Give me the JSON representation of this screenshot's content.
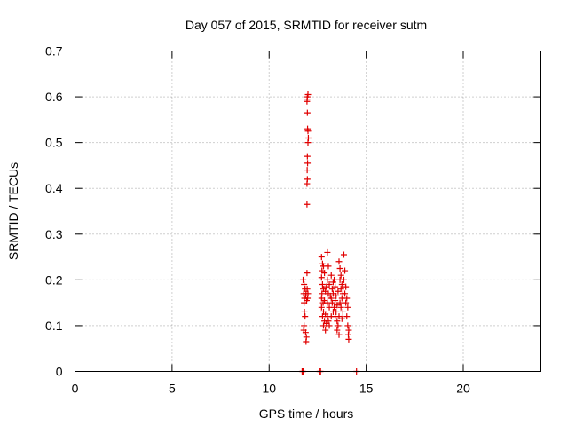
{
  "chart_data": {
    "type": "scatter",
    "title": "Day 057 of 2015, SRMTID for receiver sutm",
    "xlabel": "GPS time / hours",
    "ylabel": "SRMTID / TECUs",
    "xlim": [
      0,
      24
    ],
    "ylim": [
      0,
      0.7
    ],
    "xticks": [
      0,
      5,
      10,
      15,
      20
    ],
    "yticks": [
      0,
      0.1,
      0.2,
      0.3,
      0.4,
      0.5,
      0.6,
      0.7
    ],
    "xtick_labels": [
      "0",
      "5",
      "10",
      "15",
      "20"
    ],
    "ytick_labels": [
      "0",
      "0.1",
      "0.2",
      "0.3",
      "0.4",
      "0.5",
      "0.6",
      "0.7"
    ],
    "grid": true,
    "marker": "+",
    "color": "#e00000",
    "series": [
      {
        "name": "SRMTID",
        "points": [
          [
            11.7,
            0.0
          ],
          [
            11.75,
            0.0
          ],
          [
            12.6,
            0.0
          ],
          [
            12.65,
            0.0
          ],
          [
            14.5,
            0.0
          ],
          [
            11.75,
            0.2
          ],
          [
            11.8,
            0.19
          ],
          [
            11.78,
            0.17
          ],
          [
            11.82,
            0.16
          ],
          [
            11.8,
            0.15
          ],
          [
            11.85,
            0.18
          ],
          [
            11.9,
            0.17
          ],
          [
            11.88,
            0.165
          ],
          [
            11.82,
            0.13
          ],
          [
            11.85,
            0.12
          ],
          [
            11.8,
            0.1
          ],
          [
            11.78,
            0.09
          ],
          [
            11.88,
            0.085
          ],
          [
            11.92,
            0.075
          ],
          [
            11.9,
            0.065
          ],
          [
            11.95,
            0.215
          ],
          [
            11.96,
            0.18
          ],
          [
            12.0,
            0.17
          ],
          [
            11.93,
            0.155
          ],
          [
            11.98,
            0.16
          ],
          [
            11.95,
            0.365
          ],
          [
            11.95,
            0.41
          ],
          [
            11.97,
            0.42
          ],
          [
            11.96,
            0.44
          ],
          [
            11.98,
            0.455
          ],
          [
            11.97,
            0.47
          ],
          [
            12.0,
            0.5
          ],
          [
            12.02,
            0.51
          ],
          [
            12.0,
            0.525
          ],
          [
            11.98,
            0.53
          ],
          [
            11.97,
            0.565
          ],
          [
            11.95,
            0.59
          ],
          [
            11.96,
            0.595
          ],
          [
            11.97,
            0.6
          ],
          [
            12.0,
            0.605
          ],
          [
            12.7,
            0.25
          ],
          [
            12.75,
            0.235
          ],
          [
            12.72,
            0.22
          ],
          [
            12.8,
            0.23
          ],
          [
            12.85,
            0.215
          ],
          [
            12.7,
            0.205
          ],
          [
            12.75,
            0.19
          ],
          [
            12.8,
            0.18
          ],
          [
            12.72,
            0.17
          ],
          [
            12.9,
            0.175
          ],
          [
            12.7,
            0.16
          ],
          [
            12.78,
            0.15
          ],
          [
            12.85,
            0.155
          ],
          [
            12.7,
            0.14
          ],
          [
            12.8,
            0.13
          ],
          [
            12.9,
            0.125
          ],
          [
            12.75,
            0.12
          ],
          [
            12.85,
            0.11
          ],
          [
            12.95,
            0.105
          ],
          [
            12.8,
            0.1
          ],
          [
            12.9,
            0.09
          ],
          [
            13.0,
            0.26
          ],
          [
            13.05,
            0.23
          ],
          [
            13.0,
            0.2
          ],
          [
            13.1,
            0.19
          ],
          [
            13.05,
            0.17
          ],
          [
            13.0,
            0.15
          ],
          [
            13.1,
            0.14
          ],
          [
            13.0,
            0.12
          ],
          [
            13.05,
            0.11
          ],
          [
            13.1,
            0.1
          ],
          [
            13.2,
            0.21
          ],
          [
            13.25,
            0.18
          ],
          [
            13.3,
            0.17
          ],
          [
            13.2,
            0.16
          ],
          [
            13.25,
            0.15
          ],
          [
            13.35,
            0.14
          ],
          [
            13.3,
            0.13
          ],
          [
            13.2,
            0.12
          ],
          [
            13.35,
            0.2
          ],
          [
            13.3,
            0.195
          ],
          [
            13.4,
            0.185
          ],
          [
            13.45,
            0.165
          ],
          [
            13.4,
            0.155
          ],
          [
            13.5,
            0.145
          ],
          [
            13.45,
            0.13
          ],
          [
            13.4,
            0.12
          ],
          [
            13.5,
            0.11
          ],
          [
            13.55,
            0.1
          ],
          [
            13.5,
            0.09
          ],
          [
            13.6,
            0.08
          ],
          [
            13.6,
            0.24
          ],
          [
            13.65,
            0.225
          ],
          [
            13.7,
            0.21
          ],
          [
            13.65,
            0.2
          ],
          [
            13.75,
            0.19
          ],
          [
            13.7,
            0.18
          ],
          [
            13.8,
            0.17
          ],
          [
            13.75,
            0.16
          ],
          [
            13.65,
            0.15
          ],
          [
            13.7,
            0.14
          ],
          [
            13.8,
            0.13
          ],
          [
            13.6,
            0.12
          ],
          [
            13.75,
            0.115
          ],
          [
            13.85,
            0.255
          ],
          [
            13.9,
            0.22
          ],
          [
            13.85,
            0.2
          ],
          [
            13.95,
            0.185
          ],
          [
            13.9,
            0.17
          ],
          [
            14.0,
            0.16
          ],
          [
            13.95,
            0.15
          ],
          [
            14.05,
            0.14
          ],
          [
            14.0,
            0.12
          ],
          [
            14.05,
            0.1
          ],
          [
            14.1,
            0.09
          ],
          [
            14.08,
            0.08
          ],
          [
            14.1,
            0.07
          ],
          [
            13.55,
            0.175
          ],
          [
            13.15,
            0.165
          ],
          [
            12.95,
            0.185
          ]
        ]
      }
    ]
  }
}
